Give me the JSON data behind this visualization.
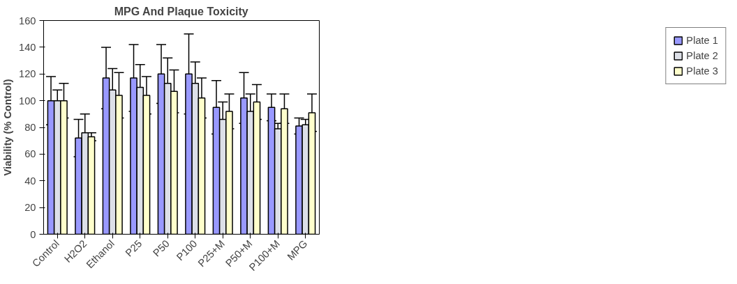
{
  "chart_data": {
    "type": "bar",
    "title": "MPG And Plaque Toxicity",
    "ylabel": "Viability (% Control)",
    "categories": [
      "Control",
      "H2O2",
      "Ethanol",
      "P25",
      "P50",
      "P100",
      "P25+M",
      "P50+M",
      "P100+M",
      "MPG"
    ],
    "series": [
      {
        "name": "Plate 1",
        "color": "#9999ff",
        "values": [
          100,
          72,
          117,
          117,
          120,
          120,
          95,
          102,
          95,
          81
        ],
        "errors": [
          18,
          14,
          23,
          25,
          22,
          30,
          20,
          19,
          10,
          6
        ]
      },
      {
        "name": "Plate 2",
        "color": "#dde0e8",
        "values": [
          100,
          76,
          108,
          110,
          113,
          113,
          86,
          92,
          79,
          82
        ],
        "errors": [
          8,
          14,
          16,
          17,
          19,
          16,
          13,
          13,
          4,
          4
        ]
      },
      {
        "name": "Plate 3",
        "color": "#ffffcc",
        "values": [
          100,
          73,
          104,
          104,
          107,
          102,
          92,
          99,
          94,
          91
        ],
        "errors": [
          13,
          3,
          17,
          14,
          16,
          15,
          13,
          13,
          11,
          14
        ]
      }
    ],
    "ylim": [
      0,
      160
    ],
    "yticks": [
      0,
      20,
      40,
      60,
      80,
      100,
      120,
      140,
      160
    ],
    "grid": false,
    "legend": "right"
  }
}
